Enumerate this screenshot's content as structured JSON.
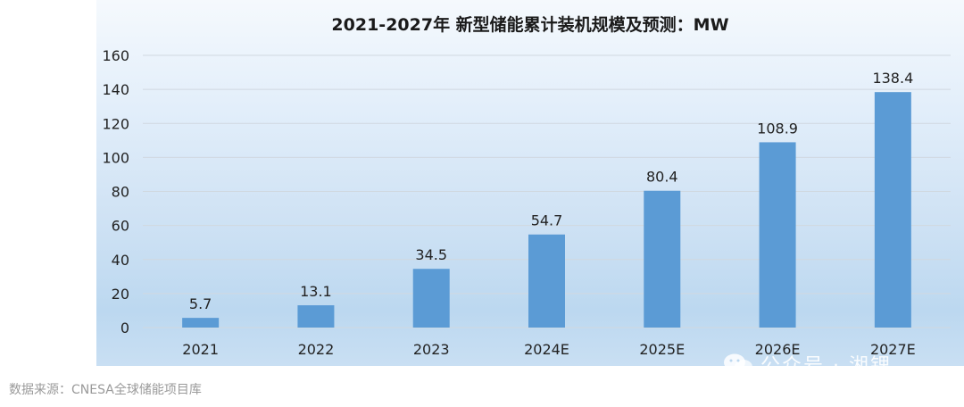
{
  "chart_data": {
    "type": "bar",
    "title": "2021-2027年 新型储能累计装机规模及预测：MW",
    "categories": [
      "2021",
      "2022",
      "2023",
      "2024E",
      "2025E",
      "2026E",
      "2027E"
    ],
    "values": [
      5.7,
      13.1,
      34.5,
      54.7,
      80.4,
      108.9,
      138.4
    ],
    "ylim": [
      0,
      160
    ],
    "yticks": [
      0,
      20,
      40,
      60,
      80,
      100,
      120,
      140,
      160
    ],
    "grid": true,
    "bar_color": "#5b9bd5",
    "gridline_color": "#d0d8e0"
  },
  "source": "数据来源：CNESA全球储能项目库",
  "watermark": "公众号 · 湘锂"
}
